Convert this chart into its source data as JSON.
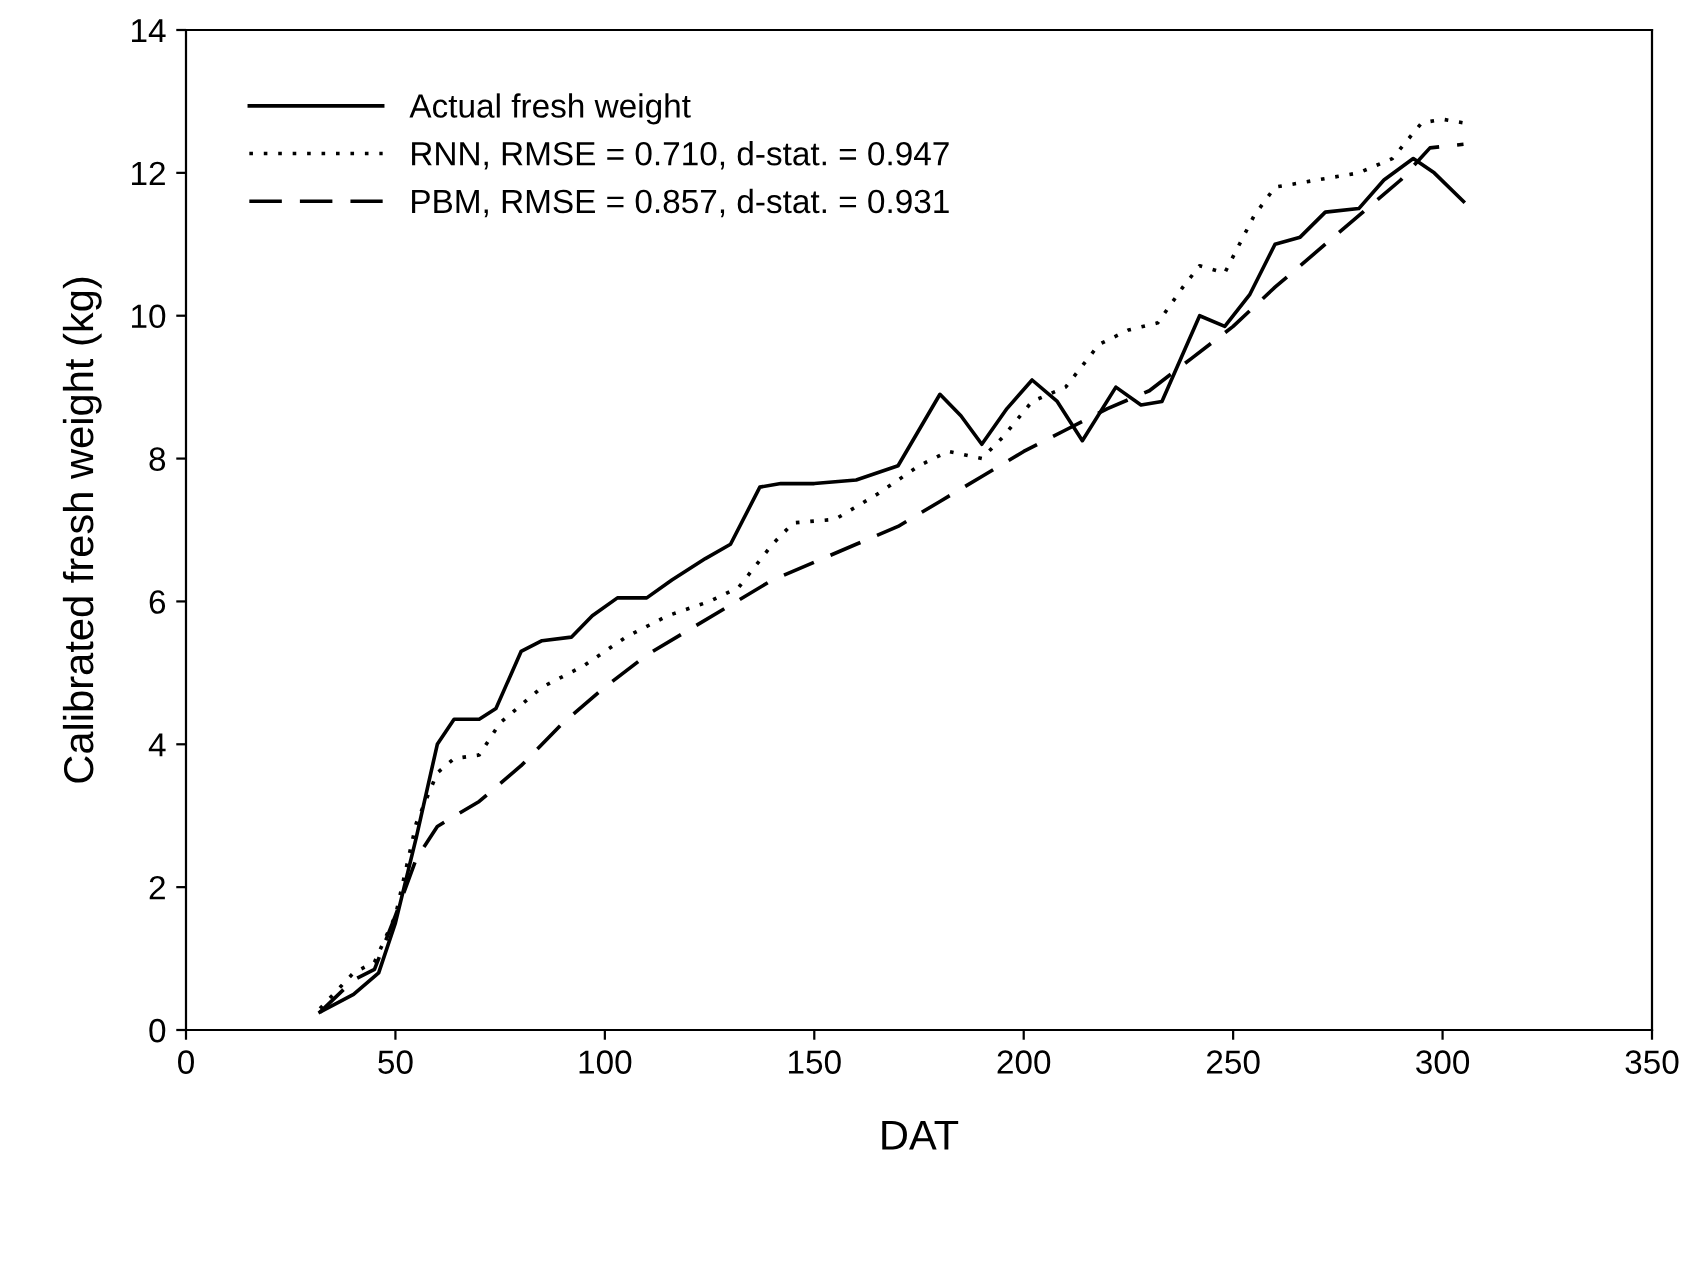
{
  "chart_data": {
    "type": "line",
    "xlabel": "DAT",
    "ylabel": "Calibrated fresh weight (kg)",
    "xlim": [
      0,
      350
    ],
    "ylim": [
      0,
      14
    ],
    "xticks": [
      0,
      50,
      100,
      150,
      200,
      250,
      300,
      350
    ],
    "yticks": [
      0,
      2,
      4,
      6,
      8,
      10,
      12,
      14
    ],
    "grid": false,
    "legend": "top left",
    "marker": "none",
    "series": [
      {
        "name": "Actual fresh weight",
        "color": "#000000",
        "line_style": "solid",
        "x": [
          32,
          40,
          46,
          50,
          55,
          60,
          64,
          70,
          74,
          80,
          85,
          92,
          97,
          103,
          110,
          116,
          124,
          130,
          137,
          142,
          150,
          160,
          170,
          175,
          180,
          185,
          190,
          196,
          202,
          208,
          214,
          222,
          228,
          233,
          242,
          248,
          254,
          260,
          266,
          272,
          280,
          286,
          293,
          298,
          305
        ],
        "values": [
          0.25,
          0.5,
          0.8,
          1.5,
          2.7,
          4.0,
          4.35,
          4.35,
          4.5,
          5.3,
          5.45,
          5.5,
          5.8,
          6.05,
          6.05,
          6.3,
          6.6,
          6.8,
          7.6,
          7.65,
          7.65,
          7.7,
          7.9,
          8.4,
          8.9,
          8.6,
          8.2,
          8.7,
          9.1,
          8.8,
          8.25,
          9.0,
          8.75,
          8.8,
          10.0,
          9.85,
          10.3,
          11.0,
          11.1,
          11.45,
          11.5,
          11.9,
          12.2,
          12.0,
          11.6
        ]
      },
      {
        "name": "RNN, RMSE = 0.710, d-stat. = 0.947",
        "color": "#000000",
        "line_style": "dotted",
        "x": [
          32,
          40,
          45,
          50,
          55,
          60,
          64,
          70,
          75,
          85,
          95,
          105,
          115,
          125,
          132,
          140,
          145,
          155,
          165,
          175,
          182,
          190,
          195,
          202,
          210,
          218,
          225,
          232,
          238,
          242,
          248,
          255,
          260,
          270,
          280,
          288,
          295,
          300,
          305
        ],
        "values": [
          0.3,
          0.8,
          0.95,
          1.6,
          2.9,
          3.6,
          3.8,
          3.85,
          4.3,
          4.8,
          5.1,
          5.5,
          5.8,
          6.0,
          6.2,
          6.8,
          7.1,
          7.15,
          7.5,
          7.9,
          8.1,
          8.0,
          8.3,
          8.8,
          9.0,
          9.6,
          9.8,
          9.9,
          10.4,
          10.7,
          10.6,
          11.4,
          11.8,
          11.9,
          12.0,
          12.2,
          12.7,
          12.75,
          12.7
        ]
      },
      {
        "name": "PBM, RMSE = 0.857, d-stat. = 0.931",
        "color": "#000000",
        "line_style": "dashed",
        "x": [
          32,
          40,
          45,
          50,
          55,
          60,
          70,
          80,
          90,
          100,
          110,
          120,
          130,
          140,
          150,
          160,
          170,
          180,
          190,
          200,
          210,
          220,
          230,
          240,
          250,
          260,
          270,
          280,
          290,
          297,
          305
        ],
        "values": [
          0.25,
          0.7,
          0.85,
          1.6,
          2.4,
          2.85,
          3.2,
          3.7,
          4.3,
          4.8,
          5.25,
          5.6,
          5.95,
          6.3,
          6.55,
          6.8,
          7.05,
          7.4,
          7.75,
          8.1,
          8.4,
          8.7,
          8.95,
          9.4,
          9.85,
          10.4,
          10.9,
          11.4,
          11.9,
          12.35,
          12.4
        ]
      }
    ]
  }
}
